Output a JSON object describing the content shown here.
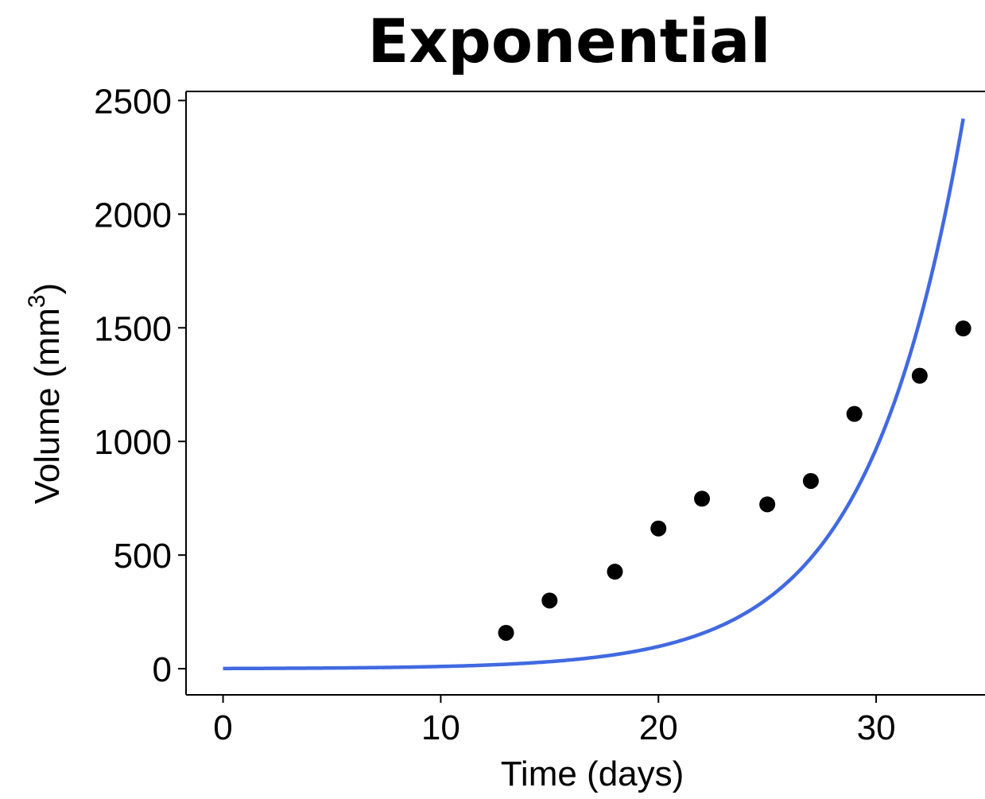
{
  "chart_data": {
    "type": "scatter",
    "title": "Exponential",
    "xlabel": "Time (days)",
    "ylabel": {
      "prefix": "Volume (mm",
      "superscript": "3",
      "suffix": ")"
    },
    "xlim": [
      -1.7,
      35
    ],
    "ylim": [
      -115,
      2540
    ],
    "x_ticks": [
      0,
      10,
      20,
      30
    ],
    "y_ticks": [
      0,
      500,
      1000,
      1500,
      2000,
      2500
    ],
    "grid": false,
    "series": [
      {
        "kind": "scatter",
        "color": "#000000",
        "x": [
          13,
          15,
          18,
          20,
          22,
          25,
          27,
          29,
          32,
          34
        ],
        "y": [
          158,
          300,
          427,
          617,
          748,
          723,
          826,
          1121,
          1289,
          1497
        ]
      },
      {
        "kind": "line",
        "color": "#4169e1",
        "model": "exponential",
        "x_range": [
          0,
          34
        ],
        "y_start": 1,
        "y_end": 2420
      }
    ]
  }
}
